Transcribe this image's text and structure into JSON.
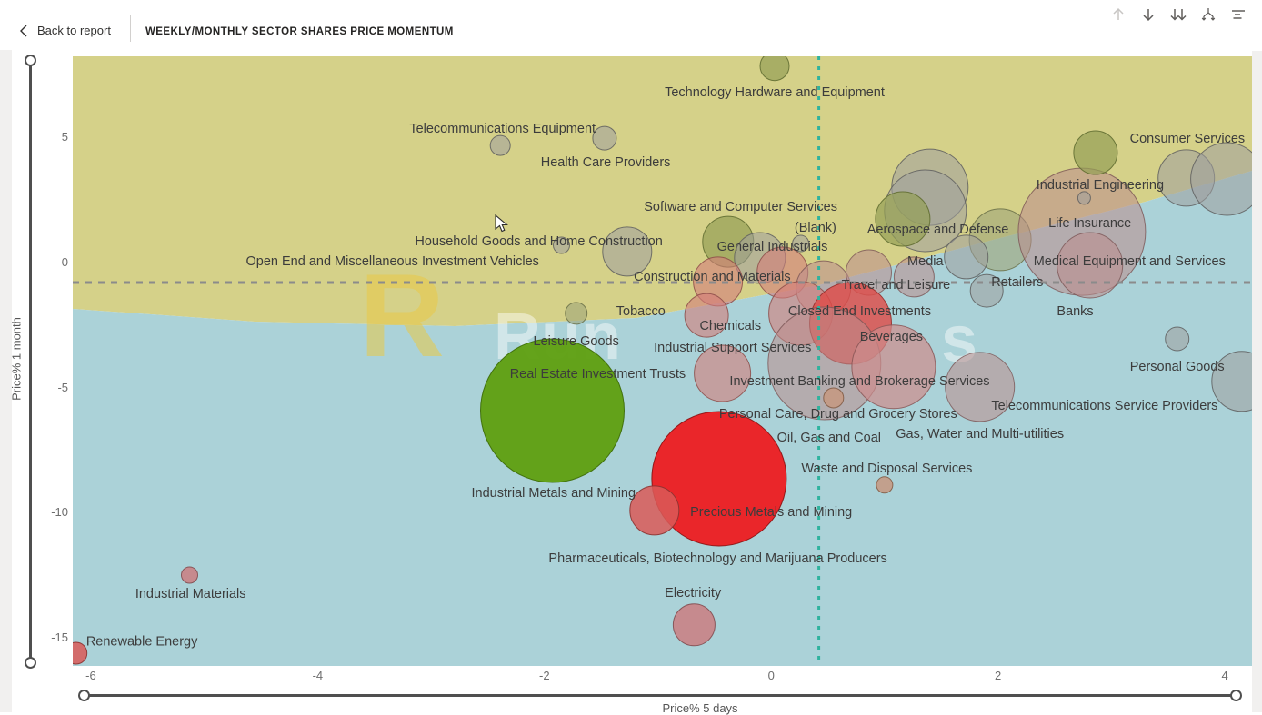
{
  "app": {
    "back_label": "Back to report",
    "title": "WEEKLY/MONTHLY SECTOR SHARES PRICE MOMENTUM",
    "toolbar": [
      {
        "name": "drill-up-icon",
        "disabled": true
      },
      {
        "name": "drill-down-icon",
        "disabled": false
      },
      {
        "name": "expand-next-level-icon",
        "disabled": false
      },
      {
        "name": "expand-all-icon",
        "disabled": false
      },
      {
        "name": "options-lines-icon",
        "disabled": false
      }
    ]
  },
  "watermark": {
    "chevron": "R",
    "left": "Run",
    "right": "s"
  },
  "chart_data": {
    "type": "scatter",
    "xlabel": "Price% 5 days",
    "ylabel": "Price% 1 month",
    "x_ticks": [
      -6,
      -4,
      -2,
      0,
      2,
      4
    ],
    "y_ticks": [
      5,
      0,
      -5,
      -10,
      -15
    ],
    "xlim": [
      -6.16,
      4.24
    ],
    "ylim": [
      -16.12,
      8.24
    ],
    "avg_x_line": 0.42,
    "avg_y_line": -0.8,
    "background": {
      "upper": "#d5d189",
      "lower": "#abd2d8"
    },
    "ref_colors": {
      "horizontal": "#8b8b8b",
      "vertical": "#2fb39e"
    },
    "palette": {
      "gray": {
        "fill": "rgba(158,158,158,0.55)",
        "stroke": "rgba(94,94,94,0.85)"
      },
      "olivegray": {
        "fill": "rgba(160,165,120,0.60)",
        "stroke": "rgba(105,110,70,0.85)"
      },
      "olive": {
        "fill": "rgba(148,160,85,0.70)",
        "stroke": "rgba(98,110,50,0.90)"
      },
      "mauve": {
        "fill": "rgba(187,140,140,0.55)",
        "stroke": "rgba(122,85,85,0.80)"
      },
      "salmon": {
        "fill": "rgba(212,125,122,0.60)",
        "stroke": "rgba(140,75,72,0.85)"
      },
      "pink": {
        "fill": "rgba(205,140,140,0.70)",
        "stroke": "rgba(135,85,85,0.85)"
      },
      "red": {
        "fill": "rgba(224,74,70,0.80)",
        "stroke": "rgba(150,45,42,0.90)"
      },
      "redmed": {
        "fill": "rgba(217,90,88,0.85)",
        "stroke": "rgba(140,50,48,0.90)"
      },
      "brightred": {
        "fill": "rgba(237,28,33,0.95)",
        "stroke": "rgba(140,20,20,0.95)"
      },
      "green": {
        "fill": "rgba(96,160,20,0.97)",
        "stroke": "rgba(62,110,10,0.95)"
      },
      "tan": {
        "fill": "rgba(198,152,128,0.85)",
        "stroke": "rgba(130,92,70,0.90)"
      },
      "pinkmauve": {
        "fill": "rgba(201,130,134,0.90)",
        "stroke": "rgba(130,76,80,0.90)"
      }
    },
    "points": [
      {
        "x": 0.03,
        "y": 7.85,
        "r": 16,
        "c": "olive"
      },
      {
        "x": -2.39,
        "y": 4.68,
        "r": 11,
        "c": "gray"
      },
      {
        "x": -1.47,
        "y": 4.97,
        "r": 13,
        "c": "gray"
      },
      {
        "x": -1.85,
        "y": 0.69,
        "r": 9,
        "c": "gray"
      },
      {
        "x": -1.27,
        "y": 0.44,
        "r": 27,
        "c": "gray"
      },
      {
        "x": -0.38,
        "y": 0.83,
        "r": 28,
        "c": "olive"
      },
      {
        "x": -0.1,
        "y": 0.18,
        "r": 28,
        "c": "gray"
      },
      {
        "x": 0.26,
        "y": 0.76,
        "r": 9,
        "c": "gray"
      },
      {
        "x": 1.4,
        "y": 3.01,
        "r": 42,
        "c": "gray"
      },
      {
        "x": 1.36,
        "y": 2.07,
        "r": 45,
        "c": "gray"
      },
      {
        "x": 1.16,
        "y": 1.74,
        "r": 30,
        "c": "olive"
      },
      {
        "x": 1.26,
        "y": -0.58,
        "r": 22,
        "c": "mauve"
      },
      {
        "x": 0.1,
        "y": -0.4,
        "r": 28,
        "c": "salmon"
      },
      {
        "x": 0.46,
        "y": -1.02,
        "r": 30,
        "c": "mauve"
      },
      {
        "x": 0.86,
        "y": -0.4,
        "r": 25,
        "c": "mauve"
      },
      {
        "x": 2.02,
        "y": 0.91,
        "r": 34,
        "c": "olivegray"
      },
      {
        "x": 1.72,
        "y": 0.22,
        "r": 24,
        "c": "gray"
      },
      {
        "x": 1.9,
        "y": -1.13,
        "r": 18,
        "c": "gray"
      },
      {
        "x": 2.74,
        "y": 1.23,
        "r": 70,
        "c": "mauve"
      },
      {
        "x": 2.81,
        "y": -0.11,
        "r": 36,
        "c": "mauve"
      },
      {
        "x": 2.76,
        "y": 2.58,
        "r": 7,
        "c": "gray"
      },
      {
        "x": 2.86,
        "y": 4.39,
        "r": 24,
        "c": "olive"
      },
      {
        "x": 3.66,
        "y": 3.38,
        "r": 31,
        "c": "gray"
      },
      {
        "x": 4.02,
        "y": 3.34,
        "r": 40,
        "c": "gray"
      },
      {
        "x": -1.72,
        "y": -2.03,
        "r": 12,
        "c": "olivegray"
      },
      {
        "x": -0.47,
        "y": -0.76,
        "r": 27,
        "c": "salmon"
      },
      {
        "x": -0.57,
        "y": -2.11,
        "r": 24,
        "c": "salmon"
      },
      {
        "x": -0.43,
        "y": -4.43,
        "r": 31,
        "c": "salmon"
      },
      {
        "x": 0.26,
        "y": -2.03,
        "r": 35,
        "c": "salmon"
      },
      {
        "x": 0.7,
        "y": -2.43,
        "r": 45,
        "c": "red"
      },
      {
        "x": 0.47,
        "y": -4.03,
        "r": 62,
        "c": "mauve"
      },
      {
        "x": 1.08,
        "y": -4.17,
        "r": 46,
        "c": "pink"
      },
      {
        "x": 0.55,
        "y": -5.41,
        "r": 11,
        "c": "tan"
      },
      {
        "x": 1.84,
        "y": -4.97,
        "r": 38,
        "c": "mauve"
      },
      {
        "x": -1.93,
        "y": -5.92,
        "r": 79,
        "c": "green"
      },
      {
        "x": -0.46,
        "y": -8.64,
        "r": 74,
        "c": "brightred"
      },
      {
        "x": -1.03,
        "y": -9.91,
        "r": 27,
        "c": "redmed"
      },
      {
        "x": 1.0,
        "y": -8.89,
        "r": 9,
        "c": "tan"
      },
      {
        "x": -0.68,
        "y": -14.48,
        "r": 23,
        "c": "pinkmauve"
      },
      {
        "x": -5.13,
        "y": -12.49,
        "r": 9,
        "c": "pinkmauve"
      },
      {
        "x": -6.13,
        "y": -15.61,
        "r": 12,
        "c": "redmed"
      },
      {
        "x": 3.58,
        "y": -3.05,
        "r": 13,
        "c": "gray"
      },
      {
        "x": 4.15,
        "y": -4.75,
        "r": 33,
        "c": "gray"
      }
    ],
    "labels": [
      {
        "text": "Technology Hardware and Equipment",
        "x": 0.03,
        "y": 6.82
      },
      {
        "text": "Telecommunications Equipment",
        "x": -2.37,
        "y": 5.37
      },
      {
        "text": "Health Care Providers",
        "x": -1.46,
        "y": 4.03
      },
      {
        "text": "Consumer Services",
        "x": 3.67,
        "y": 4.97
      },
      {
        "text": "Software and Computer Services",
        "x": -0.27,
        "y": 2.25
      },
      {
        "text": "(Blank)",
        "x": 0.39,
        "y": 1.42
      },
      {
        "text": "Aerospace and Defense",
        "x": 1.47,
        "y": 1.34
      },
      {
        "text": "Industrial Engineering",
        "x": 2.9,
        "y": 3.12
      },
      {
        "text": "Life Insurance",
        "x": 2.81,
        "y": 1.6
      },
      {
        "text": "Household Goods and Home Construction",
        "x": -2.05,
        "y": 0.87
      },
      {
        "text": "Open End and Miscellaneous Investment Vehicles",
        "x": -3.34,
        "y": 0.07
      },
      {
        "text": "General Industrials",
        "x": 0.01,
        "y": 0.65
      },
      {
        "text": "Media",
        "x": 1.36,
        "y": 0.07
      },
      {
        "text": "Medical Equipment and Services",
        "x": 3.16,
        "y": 0.07
      },
      {
        "text": "Construction and Materials",
        "x": -0.52,
        "y": -0.54
      },
      {
        "text": "Travel and Leisure",
        "x": 1.1,
        "y": -0.87
      },
      {
        "text": "Retailers",
        "x": 2.17,
        "y": -0.76
      },
      {
        "text": "Tobacco",
        "x": -1.15,
        "y": -1.92
      },
      {
        "text": "Closed End Investments",
        "x": 0.78,
        "y": -1.92
      },
      {
        "text": "Banks",
        "x": 2.68,
        "y": -1.92
      },
      {
        "text": "Chemicals",
        "x": -0.36,
        "y": -2.5
      },
      {
        "text": "Leisure Goods",
        "x": -1.72,
        "y": -3.12
      },
      {
        "text": "Industrial Support Services",
        "x": -0.34,
        "y": -3.38
      },
      {
        "text": "Beverages",
        "x": 1.06,
        "y": -2.94
      },
      {
        "text": "Real Estate Investment Trusts",
        "x": -1.53,
        "y": -4.43
      },
      {
        "text": "Investment Banking and Brokerage Services",
        "x": 0.78,
        "y": -4.72
      },
      {
        "text": "Personal Goods",
        "x": 3.58,
        "y": -4.14
      },
      {
        "text": "Telecommunications Service Providers",
        "x": 2.94,
        "y": -5.7
      },
      {
        "text": "Personal Care, Drug and Grocery Stores",
        "x": 0.59,
        "y": -6.03
      },
      {
        "text": "Oil, Gas and Coal",
        "x": 0.51,
        "y": -6.97
      },
      {
        "text": "Gas, Water and Multi-utilities",
        "x": 1.84,
        "y": -6.82
      },
      {
        "text": "Waste and Disposal Services",
        "x": 1.02,
        "y": -8.2
      },
      {
        "text": "Industrial Metals and Mining",
        "x": -1.92,
        "y": -9.18
      },
      {
        "text": "Precious Metals and Mining",
        "x": 0.0,
        "y": -9.95
      },
      {
        "text": "Pharmaceuticals, Biotechnology and Marijuana Producers",
        "x": -0.47,
        "y": -11.8
      },
      {
        "text": "Electricity",
        "x": -0.69,
        "y": -13.18
      },
      {
        "text": "Industrial Materials",
        "x": -5.12,
        "y": -13.21
      },
      {
        "text": "Renewable Energy",
        "x": -5.55,
        "y": -15.13
      }
    ]
  }
}
